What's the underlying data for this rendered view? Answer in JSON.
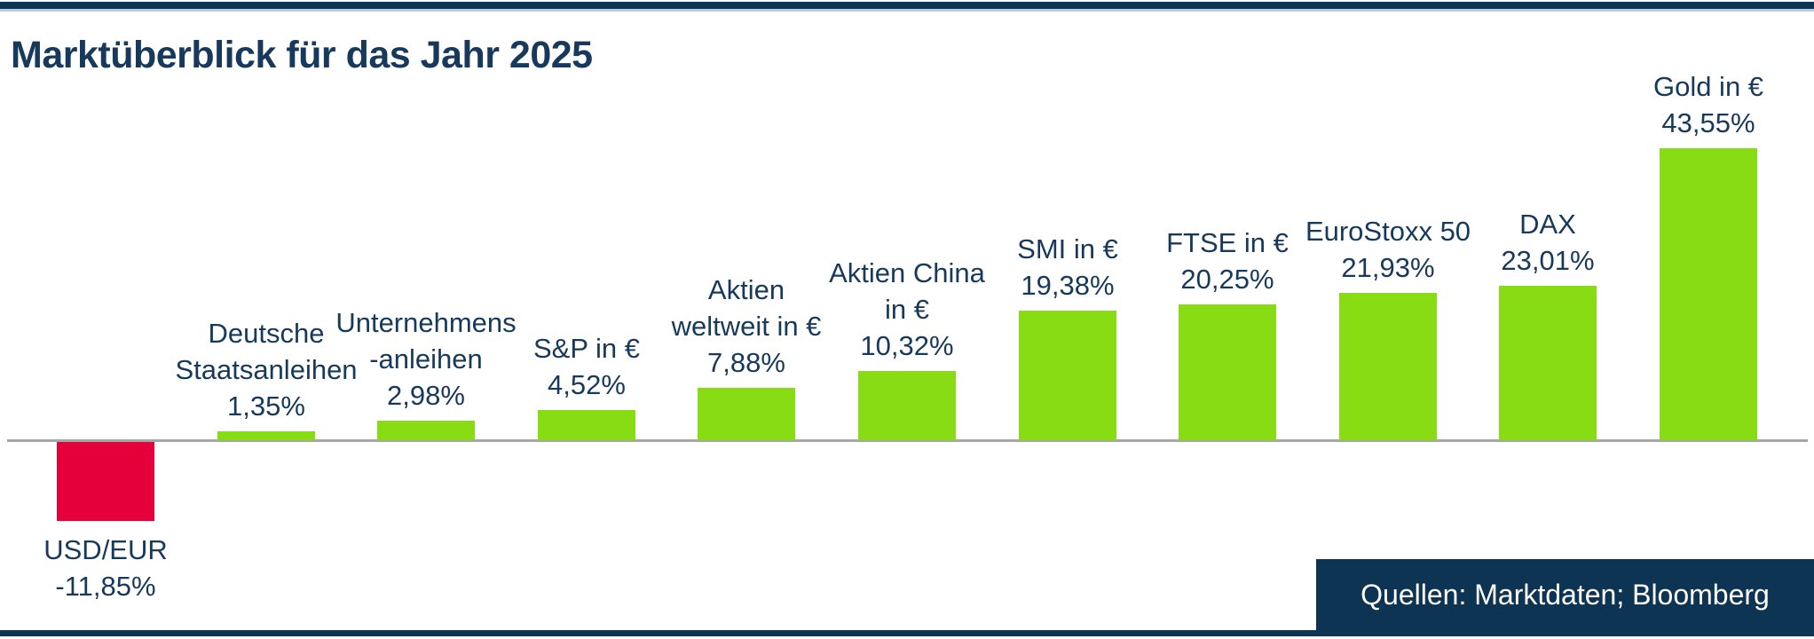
{
  "header": {
    "title": "Marktüberblick für das Jahr 2025"
  },
  "colors": {
    "navy": "#0E3553",
    "text_navy": "#17395C",
    "bar_positive": "#87DC14",
    "bar_negative": "#E5003C",
    "baseline_gray": "#A6A6A6",
    "source_bg": "#0D3452",
    "source_text": "#FFFFFF",
    "top_edge_light": "#B9CADB"
  },
  "chart_data": {
    "type": "bar",
    "title": "Marktüberblick für das Jahr 2025",
    "unit": "%",
    "ylim": [
      -15,
      45
    ],
    "baseline_value": 0,
    "grid": false,
    "legend": false,
    "value_format": "german-decimal-comma",
    "bars": [
      {
        "id": "usd-eur",
        "name_lines": [
          "USD/EUR"
        ],
        "value": -11.85,
        "value_label": "-11,85%"
      },
      {
        "id": "deutsche-staatsanleihen",
        "name_lines": [
          "Deutsche",
          "Staatsanleihen"
        ],
        "value": 1.35,
        "value_label": "1,35%"
      },
      {
        "id": "unternehmensanleihen",
        "name_lines": [
          "Unternehmens",
          "-anleihen"
        ],
        "value": 2.98,
        "value_label": "2,98%"
      },
      {
        "id": "sp-in-eur",
        "name_lines": [
          "S&P in €"
        ],
        "value": 4.52,
        "value_label": "4,52%"
      },
      {
        "id": "aktien-weltweit",
        "name_lines": [
          "Aktien",
          "weltweit in €"
        ],
        "value": 7.88,
        "value_label": "7,88%"
      },
      {
        "id": "aktien-china",
        "name_lines": [
          "Aktien China",
          "in €"
        ],
        "value": 10.32,
        "value_label": "10,32%"
      },
      {
        "id": "smi-in-eur",
        "name_lines": [
          "SMI in €"
        ],
        "value": 19.38,
        "value_label": "19,38%"
      },
      {
        "id": "ftse-in-eur",
        "name_lines": [
          "FTSE in €"
        ],
        "value": 20.25,
        "value_label": "20,25%"
      },
      {
        "id": "eurostoxx-50",
        "name_lines": [
          "EuroStoxx 50"
        ],
        "value": 21.93,
        "value_label": "21,93%"
      },
      {
        "id": "dax",
        "name_lines": [
          "DAX"
        ],
        "value": 23.01,
        "value_label": "23,01%"
      },
      {
        "id": "gold-in-eur",
        "name_lines": [
          "Gold in €"
        ],
        "value": 43.55,
        "value_label": "43,55%"
      }
    ]
  },
  "footer": {
    "source_label": "Quellen: Marktdaten; Bloomberg"
  }
}
